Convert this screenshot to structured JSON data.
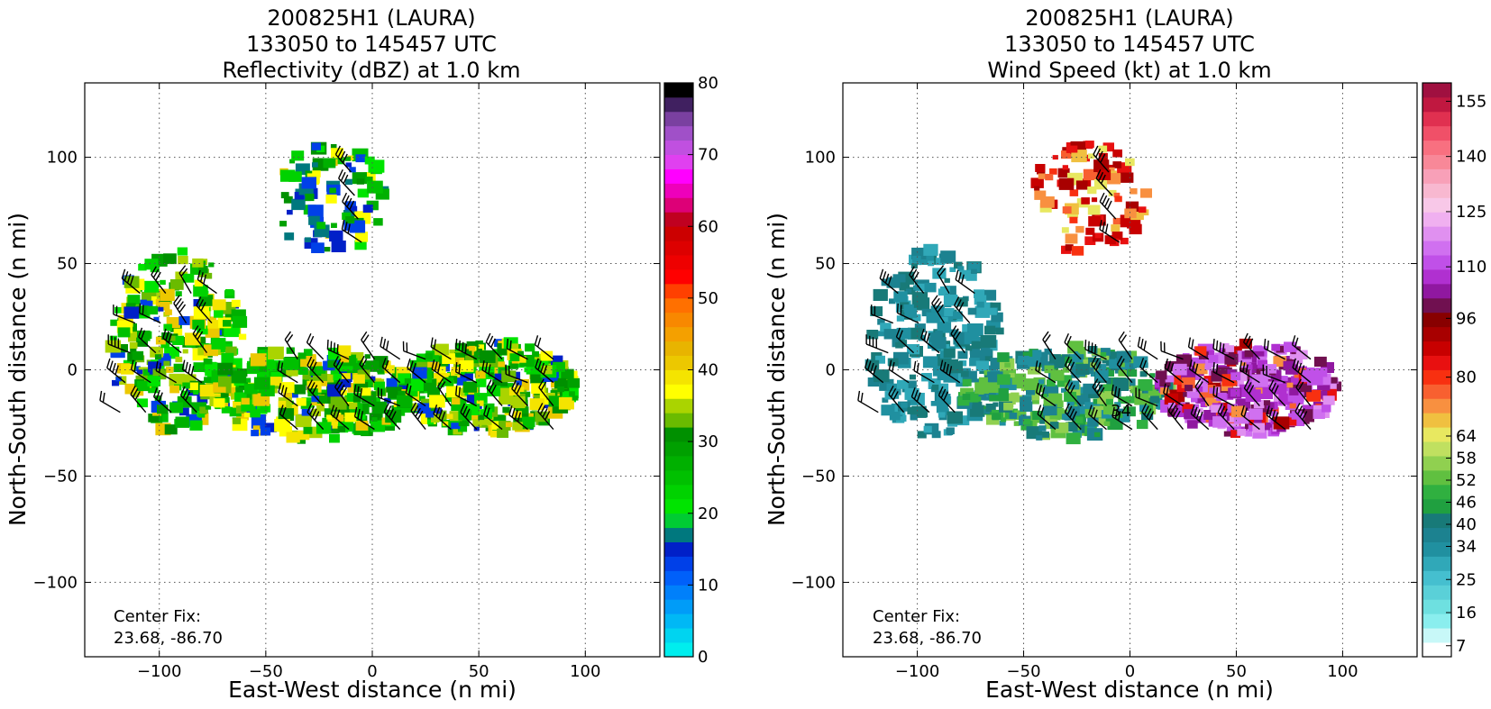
{
  "chart_data": [
    {
      "type": "heatmap",
      "title_lines": [
        "200825H1 (LAURA)",
        "133050 to 145457 UTC",
        "Reflectivity (dBZ) at 1.0 km"
      ],
      "xlabel": "East-West distance (n mi)",
      "ylabel": "North-South distance (n mi)",
      "xlim": [
        -135,
        135
      ],
      "ylim": [
        -135,
        135
      ],
      "xticks": [
        -100,
        -50,
        0,
        50,
        100
      ],
      "yticks": [
        -100,
        -50,
        0,
        50,
        100
      ],
      "xtick_labels": [
        "−100",
        "−50",
        "0",
        "50",
        "100"
      ],
      "ytick_labels": [
        "−100",
        "−50",
        "0",
        "50",
        "100"
      ],
      "grid": true,
      "center_fix_label": "Center Fix:",
      "center_fix_value": "23.68, -86.70",
      "colorbar": {
        "min": 0,
        "max": 80,
        "colors": [
          "#00eeee",
          "#00d4f0",
          "#00b8f5",
          "#009cf8",
          "#0080fa",
          "#0060fa",
          "#0040e8",
          "#0020c8",
          "#00787e",
          "#00cc33",
          "#00e400",
          "#00d200",
          "#00c000",
          "#00b000",
          "#00a000",
          "#009000",
          "#6abb00",
          "#aad400",
          "#ffff00",
          "#f4e400",
          "#ecc800",
          "#e8b400",
          "#f4a000",
          "#f88800",
          "#ff7000",
          "#ff4000",
          "#ff0000",
          "#ee0000",
          "#dd0000",
          "#cc0000",
          "#c00020",
          "#dd0077",
          "#ee00bb",
          "#ff00ff",
          "#e040f0",
          "#c050e0",
          "#a050c8",
          "#7a40a0",
          "#402060",
          "#000000"
        ],
        "tick_values": [
          0,
          10,
          20,
          30,
          40,
          50,
          60,
          70,
          80
        ],
        "tick_labels": [
          "0",
          "10",
          "20",
          "30",
          "40",
          "50",
          "60",
          "70",
          "80"
        ]
      },
      "field_regions": [
        {
          "band": "north-arc",
          "x": [
            -45,
            10
          ],
          "y": [
            55,
            108
          ],
          "dominant": "blue-green-yellow"
        },
        {
          "band": "west-arc",
          "x": [
            -125,
            -60
          ],
          "y": [
            -30,
            55
          ],
          "dominant": "green-yellow"
        },
        {
          "band": "south-band",
          "x": [
            -80,
            95
          ],
          "y": [
            -35,
            15
          ],
          "dominant": "green-yellow"
        }
      ],
      "wind_barbs": "overlaid, black, kt"
    },
    {
      "type": "heatmap",
      "title_lines": [
        "200825H1 (LAURA)",
        "133050 to 145457 UTC",
        "Wind Speed (kt) at 1.0 km"
      ],
      "xlabel": "East-West distance (n mi)",
      "ylabel": "North-South distance (n mi)",
      "xlim": [
        -135,
        135
      ],
      "ylim": [
        -135,
        135
      ],
      "xticks": [
        -100,
        -50,
        0,
        50,
        100
      ],
      "yticks": [
        -100,
        -50,
        0,
        50,
        100
      ],
      "xtick_labels": [
        "−100",
        "−50",
        "0",
        "50",
        "100"
      ],
      "ytick_labels": [
        "−100",
        "−50",
        "0",
        "50",
        "100"
      ],
      "grid": true,
      "center_fix_label": "Center Fix:",
      "center_fix_value": "23.68, -86.70",
      "colorbar": {
        "min": 4,
        "max": 160,
        "colors": [
          "#ffffff",
          "#c8f8f8",
          "#8aeeee",
          "#6ee0e0",
          "#5ad0d8",
          "#45bfcf",
          "#30a8b8",
          "#2090a0",
          "#1c8290",
          "#187a78",
          "#20a040",
          "#30b040",
          "#60c040",
          "#90d050",
          "#c0e060",
          "#e8e860",
          "#f0c040",
          "#f89040",
          "#f86030",
          "#f83010",
          "#e81010",
          "#c80000",
          "#a80000",
          "#880000",
          "#701050",
          "#9018a0",
          "#b030d0",
          "#c050e8",
          "#d070f0",
          "#e090f0",
          "#f0b0f0",
          "#f8c8e8",
          "#f8b8d0",
          "#f8a0b8",
          "#f88898",
          "#f87080",
          "#f05068",
          "#e03050",
          "#c01840",
          "#a01040"
        ],
        "tick_values": [
          7,
          16,
          25,
          34,
          40,
          46,
          52,
          58,
          64,
          80,
          96,
          110,
          125,
          140,
          155
        ],
        "tick_labels": [
          "7",
          "16",
          "25",
          "34",
          "40",
          "46",
          "52",
          "58",
          "64",
          "80",
          "96",
          "110",
          "125",
          "140",
          "155"
        ]
      },
      "field_regions": [
        {
          "band": "north-arc",
          "x": [
            -45,
            10
          ],
          "y": [
            55,
            108
          ],
          "dominant": "yellow-red"
        },
        {
          "band": "west-arc",
          "x": [
            -125,
            -60
          ],
          "y": [
            -30,
            55
          ],
          "dominant": "teal"
        },
        {
          "band": "south-band-west",
          "x": [
            -80,
            20
          ],
          "y": [
            -35,
            15
          ],
          "dominant": "teal-green"
        },
        {
          "band": "south-band-east",
          "x": [
            20,
            95
          ],
          "y": [
            -35,
            15
          ],
          "dominant": "purple-red"
        }
      ],
      "contour_labels": [
        "34"
      ],
      "wind_barbs": "overlaid, black, kt"
    }
  ]
}
